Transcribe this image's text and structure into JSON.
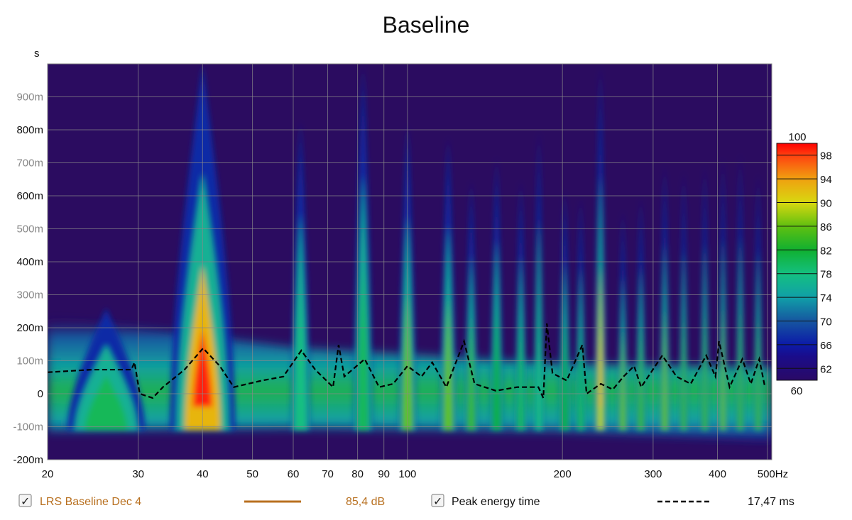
{
  "chart_data": {
    "type": "heatmap",
    "title": "Baseline",
    "ylabel": "s",
    "xlabel": "Hz",
    "x_scale": "log",
    "xlim": [
      20,
      510
    ],
    "ylim_ms": [
      -200,
      1000
    ],
    "x_ticks": [
      {
        "v": 20,
        "label": "20"
      },
      {
        "v": 30,
        "label": "30"
      },
      {
        "v": 40,
        "label": "40"
      },
      {
        "v": 50,
        "label": "50"
      },
      {
        "v": 60,
        "label": "60"
      },
      {
        "v": 70,
        "label": "70"
      },
      {
        "v": 80,
        "label": "80"
      },
      {
        "v": 90,
        "label": "90"
      },
      {
        "v": 100,
        "label": "100"
      },
      {
        "v": 200,
        "label": "200"
      },
      {
        "v": 300,
        "label": "300"
      },
      {
        "v": 400,
        "label": "400"
      },
      {
        "v": 500,
        "label": "500Hz"
      }
    ],
    "y_ticks": [
      {
        "v": 900,
        "label": "900m",
        "minor": true
      },
      {
        "v": 800,
        "label": "800m"
      },
      {
        "v": 700,
        "label": "700m",
        "minor": true
      },
      {
        "v": 600,
        "label": "600m"
      },
      {
        "v": 500,
        "label": "500m",
        "minor": true
      },
      {
        "v": 400,
        "label": "400m"
      },
      {
        "v": 300,
        "label": "300m",
        "minor": true
      },
      {
        "v": 200,
        "label": "200m"
      },
      {
        "v": 100,
        "label": "100m",
        "minor": true
      },
      {
        "v": 0,
        "label": "0"
      },
      {
        "v": -100,
        "label": "-100m",
        "minor": true
      },
      {
        "v": -200,
        "label": "-200m"
      }
    ],
    "colorbar": {
      "top_label": "100",
      "bottom_label": "60",
      "ticks": [
        "98",
        "94",
        "90",
        "86",
        "82",
        "78",
        "74",
        "70",
        "66",
        "62"
      ],
      "stops": [
        {
          "db": 60,
          "color": "#2a0a66"
        },
        {
          "db": 64,
          "color": "#1a0c8a"
        },
        {
          "db": 66,
          "color": "#0c1aa8"
        },
        {
          "db": 70,
          "color": "#1656a0"
        },
        {
          "db": 74,
          "color": "#10a0a8"
        },
        {
          "db": 78,
          "color": "#14c080"
        },
        {
          "db": 82,
          "color": "#10b030"
        },
        {
          "db": 86,
          "color": "#60c010"
        },
        {
          "db": 90,
          "color": "#d8d810"
        },
        {
          "db": 94,
          "color": "#f0a010"
        },
        {
          "db": 98,
          "color": "#ff4010"
        },
        {
          "db": 100,
          "color": "#ff0000"
        }
      ]
    },
    "background_color": "#2b0c60",
    "resonances": [
      {
        "f": 26,
        "decay_ms": 260,
        "db": 80,
        "spread_oct": 0.5
      },
      {
        "f": 40,
        "decay_ms": 1000,
        "db": 99,
        "spread_oct": 0.42
      },
      {
        "f": 62,
        "decay_ms": 830,
        "db": 78,
        "spread_oct": 0.12
      },
      {
        "f": 82,
        "decay_ms": 1000,
        "db": 80,
        "spread_oct": 0.12
      },
      {
        "f": 100,
        "decay_ms": 820,
        "db": 86,
        "spread_oct": 0.11
      },
      {
        "f": 120,
        "decay_ms": 780,
        "db": 86,
        "spread_oct": 0.1
      },
      {
        "f": 133,
        "decay_ms": 650,
        "db": 84,
        "spread_oct": 0.08
      },
      {
        "f": 149,
        "decay_ms": 720,
        "db": 82,
        "spread_oct": 0.08
      },
      {
        "f": 166,
        "decay_ms": 650,
        "db": 80,
        "spread_oct": 0.07
      },
      {
        "f": 180,
        "decay_ms": 800,
        "db": 78,
        "spread_oct": 0.06
      },
      {
        "f": 202,
        "decay_ms": 620,
        "db": 82,
        "spread_oct": 0.07
      },
      {
        "f": 217,
        "decay_ms": 600,
        "db": 80,
        "spread_oct": 0.06
      },
      {
        "f": 237,
        "decay_ms": 1000,
        "db": 92,
        "spread_oct": 0.07
      },
      {
        "f": 262,
        "decay_ms": 560,
        "db": 86,
        "spread_oct": 0.06
      },
      {
        "f": 284,
        "decay_ms": 600,
        "db": 84,
        "spread_oct": 0.06
      },
      {
        "f": 316,
        "decay_ms": 700,
        "db": 86,
        "spread_oct": 0.06
      },
      {
        "f": 344,
        "decay_ms": 680,
        "db": 84,
        "spread_oct": 0.05
      },
      {
        "f": 378,
        "decay_ms": 700,
        "db": 84,
        "spread_oct": 0.05
      },
      {
        "f": 410,
        "decay_ms": 720,
        "db": 86,
        "spread_oct": 0.05
      },
      {
        "f": 443,
        "decay_ms": 730,
        "db": 84,
        "spread_oct": 0.05
      },
      {
        "f": 480,
        "decay_ms": 670,
        "db": 84,
        "spread_oct": 0.05
      }
    ],
    "series": [
      {
        "name": "Peak energy time",
        "style": "dashed",
        "color": "#000000",
        "points": [
          [
            20,
            65
          ],
          [
            24.4,
            73
          ],
          [
            29.1,
            73
          ],
          [
            29.5,
            95
          ],
          [
            30.2,
            0
          ],
          [
            32,
            -13
          ],
          [
            33.5,
            20
          ],
          [
            36.9,
            73
          ],
          [
            40.1,
            138
          ],
          [
            43.2,
            84
          ],
          [
            46,
            20
          ],
          [
            52.2,
            40
          ],
          [
            57.4,
            52
          ],
          [
            62.2,
            131
          ],
          [
            66.2,
            73
          ],
          [
            71.7,
            20
          ],
          [
            73.5,
            148
          ],
          [
            75.4,
            52
          ],
          [
            82.6,
            105
          ],
          [
            88.1,
            20
          ],
          [
            93.8,
            30
          ],
          [
            100,
            84
          ],
          [
            106.5,
            52
          ],
          [
            111.7,
            95
          ],
          [
            119,
            20
          ],
          [
            128.8,
            159
          ],
          [
            135,
            30
          ],
          [
            148.5,
            9
          ],
          [
            163.3,
            20
          ],
          [
            179.6,
            20
          ],
          [
            183.6,
            -13
          ],
          [
            186.5,
            213
          ],
          [
            191.3,
            62
          ],
          [
            203.8,
            40
          ],
          [
            218.6,
            148
          ],
          [
            222.8,
            0
          ],
          [
            237.4,
            30
          ],
          [
            250.6,
            13
          ],
          [
            262.8,
            52
          ],
          [
            275.5,
            84
          ],
          [
            284.4,
            20
          ],
          [
            312.6,
            116
          ],
          [
            333.1,
            52
          ],
          [
            354.9,
            30
          ],
          [
            380.4,
            116
          ],
          [
            396.5,
            52
          ],
          [
            402.8,
            159
          ],
          [
            422.3,
            20
          ],
          [
            447.1,
            105
          ],
          [
            464.4,
            30
          ],
          [
            482.3,
            105
          ],
          [
            494.7,
            20
          ]
        ]
      }
    ]
  },
  "legend": {
    "items": [
      {
        "checked": true,
        "label": "LRS Baseline Dec 4",
        "value": "85,4 dB",
        "color": "#b87020"
      },
      {
        "checked": true,
        "label": "Peak energy time",
        "value": "17,47 ms",
        "color": "#000000"
      }
    ]
  }
}
